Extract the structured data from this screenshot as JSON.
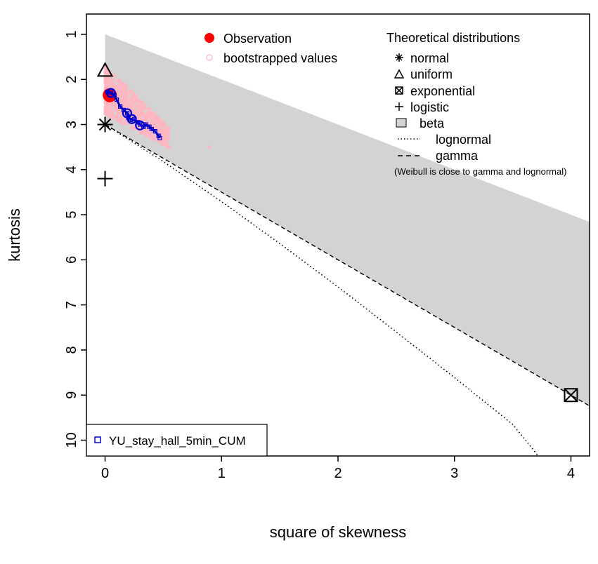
{
  "chart_data": {
    "type": "scatter",
    "title": "",
    "xlabel": "square of skewness",
    "ylabel": "kurtosis",
    "xlim": [
      -0.16,
      4.16
    ],
    "ylim": [
      10.35,
      0.55
    ],
    "x_ticks": [
      0,
      1,
      2,
      3,
      4
    ],
    "y_ticks": [
      1,
      2,
      3,
      4,
      5,
      6,
      7,
      8,
      9,
      10
    ],
    "beta_region": {
      "label": "beta",
      "polygon": [
        [
          0,
          1
        ],
        [
          4.16,
          5.16
        ],
        [
          4.16,
          9.24
        ],
        [
          0,
          3
        ]
      ],
      "color": "#d3d3d3"
    },
    "gamma_line": {
      "label": "gamma",
      "style": "dashed",
      "points": [
        [
          0,
          3
        ],
        [
          4.16,
          9.24
        ]
      ]
    },
    "lognormal_line": {
      "label": "lognormal",
      "style": "dotted",
      "points": [
        [
          0,
          3
        ],
        [
          0.5,
          3.82
        ],
        [
          1,
          4.71
        ],
        [
          1.5,
          5.64
        ],
        [
          2,
          6.6
        ],
        [
          2.5,
          7.6
        ],
        [
          3,
          8.61
        ],
        [
          3.5,
          9.65
        ],
        [
          3.72,
          10.35
        ]
      ]
    },
    "theoretical_points": [
      {
        "name": "normal",
        "x": 0,
        "y": 3,
        "marker": "asterisk"
      },
      {
        "name": "uniform",
        "x": 0,
        "y": 1.8,
        "marker": "triangle"
      },
      {
        "name": "exponential",
        "x": 4,
        "y": 9,
        "marker": "boxed-x"
      },
      {
        "name": "logistic",
        "x": 0,
        "y": 4.2,
        "marker": "plus"
      }
    ],
    "observation": {
      "x": 0.04,
      "y": 2.35,
      "color": "#ff0000"
    },
    "bootstrap_cloud": {
      "x_range": [
        0,
        0.55
      ],
      "y_range": [
        1.7,
        3.6
      ],
      "extra": [
        [
          0.9,
          3.5
        ]
      ],
      "color": "#ffb6c1"
    },
    "bootstrap_trace": {
      "name": "YU_stay_hall_5min_CUM",
      "color": "#0000cd",
      "points": [
        [
          0.02,
          2.28
        ],
        [
          0.05,
          2.3
        ],
        [
          0.08,
          2.35
        ],
        [
          0.1,
          2.45
        ],
        [
          0.13,
          2.6
        ],
        [
          0.16,
          2.68
        ],
        [
          0.19,
          2.75
        ],
        [
          0.2,
          2.85
        ],
        [
          0.22,
          2.9
        ],
        [
          0.25,
          2.88
        ],
        [
          0.28,
          2.95
        ],
        [
          0.3,
          3.0
        ],
        [
          0.33,
          3.05
        ],
        [
          0.35,
          3.0
        ],
        [
          0.38,
          3.05
        ],
        [
          0.4,
          3.1
        ],
        [
          0.43,
          3.15
        ],
        [
          0.46,
          3.25
        ],
        [
          0.47,
          3.3
        ]
      ],
      "blobs": [
        [
          0.05,
          2.3
        ],
        [
          0.19,
          2.75
        ],
        [
          0.23,
          2.88
        ],
        [
          0.3,
          3.02
        ]
      ]
    },
    "legend_left": {
      "entries": [
        {
          "label": "Observation",
          "marker": "filled-circle",
          "color": "#ff0000"
        },
        {
          "label": "bootstrapped values",
          "marker": "open-circle",
          "color": "#ffb6c1"
        }
      ]
    },
    "legend_right": {
      "title": "Theoretical distributions",
      "entries": [
        {
          "label": "normal",
          "marker": "asterisk"
        },
        {
          "label": "uniform",
          "marker": "triangle"
        },
        {
          "label": "exponential",
          "marker": "boxed-x"
        },
        {
          "label": "logistic",
          "marker": "plus"
        },
        {
          "label": "beta",
          "marker": "grey-box"
        },
        {
          "label": "lognormal",
          "marker": "dotted-line"
        },
        {
          "label": "gamma",
          "marker": "dashed-line"
        }
      ],
      "note": "(Weibull is close to gamma and lognormal)"
    },
    "legend_bottom": {
      "label": "YU_stay_hall_5min_CUM",
      "color": "#0000cd"
    }
  }
}
